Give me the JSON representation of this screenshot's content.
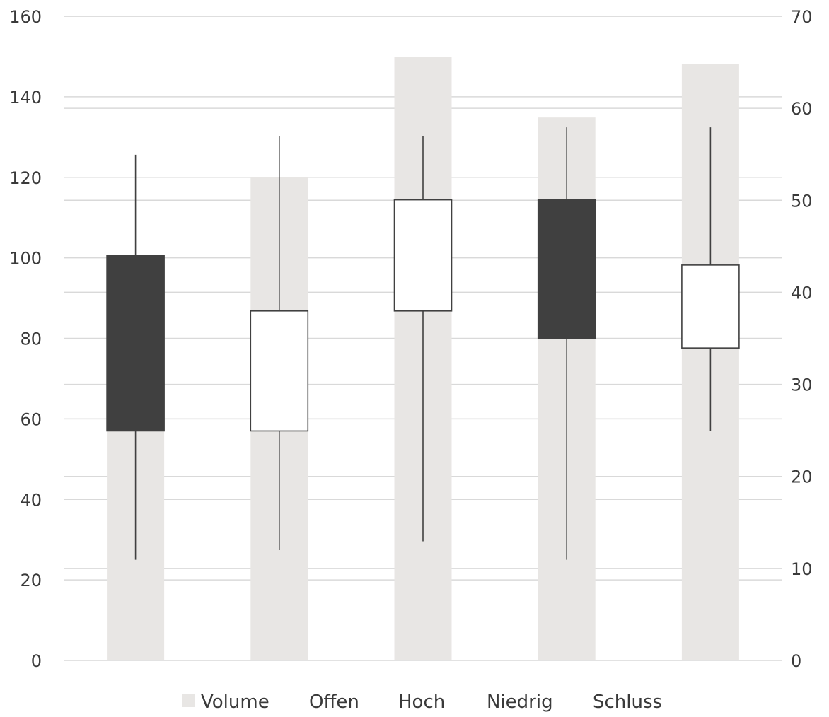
{
  "chart_data": {
    "type": "stock-volume-open-high-low-close",
    "categories": [
      "",
      "",
      "",
      "",
      ""
    ],
    "series": [
      {
        "name": "Volume",
        "axis": "secondary",
        "values": [
          25,
          52.5,
          65.6,
          59,
          64.8
        ]
      },
      {
        "name": "Offen",
        "values": [
          100.6,
          57,
          86.8,
          114.4,
          77.6
        ]
      },
      {
        "name": "Hoch",
        "values": [
          125.6,
          130.2,
          130.2,
          132.4,
          132.4
        ]
      },
      {
        "name": "Niedrig",
        "values": [
          25,
          27.4,
          29.6,
          25,
          57
        ]
      },
      {
        "name": "Schluss",
        "values": [
          57,
          86.8,
          114.4,
          80,
          98.2
        ]
      }
    ],
    "y_left": {
      "min": 0,
      "max": 160,
      "ticks": [
        "0",
        "20",
        "40",
        "60",
        "80",
        "100",
        "120",
        "140",
        "160"
      ]
    },
    "y_right": {
      "min": 0,
      "max": 70,
      "ticks": [
        "0",
        "10",
        "20",
        "30",
        "40",
        "50",
        "60",
        "70"
      ]
    },
    "grid": true,
    "legend_position": "bottom",
    "colors": {
      "volume": "#e8e6e4",
      "up_body": "#ffffff",
      "down_body": "#404040",
      "line": "#404040",
      "grid": "#d9d9d9",
      "text": "#3a3a3a"
    }
  }
}
